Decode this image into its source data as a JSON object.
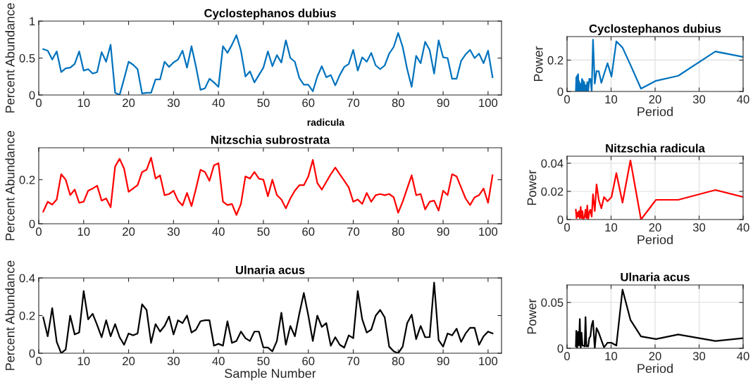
{
  "chart_data": [
    {
      "type": "line",
      "title": "Cyclostephanos dubius",
      "ylabel": "Percent Abundance",
      "xlim": [
        0,
        103
      ],
      "xticks": [
        0,
        10,
        20,
        30,
        40,
        50,
        60,
        70,
        80,
        90,
        100
      ],
      "ylim": [
        0,
        1
      ],
      "yticks": [
        0,
        0.5,
        1
      ],
      "grid": false,
      "annotations": [
        "radicula"
      ],
      "x": [
        1,
        2,
        3,
        4,
        5,
        6,
        7,
        8,
        9,
        10,
        11,
        12,
        13,
        14,
        15,
        16,
        17,
        18,
        19,
        20,
        21,
        22,
        23,
        24,
        25,
        26,
        27,
        28,
        29,
        30,
        31,
        32,
        33,
        34,
        35,
        36,
        37,
        38,
        39,
        40,
        41,
        42,
        43,
        44,
        45,
        46,
        47,
        48,
        49,
        50,
        51,
        52,
        53,
        54,
        55,
        56,
        57,
        58,
        59,
        60,
        61,
        62,
        63,
        64,
        65,
        66,
        67,
        68,
        69,
        70,
        71,
        72,
        73,
        74,
        75,
        76,
        77,
        78,
        79,
        80,
        81,
        82,
        83,
        84,
        85,
        86,
        87,
        88,
        89,
        90,
        91,
        92,
        93,
        94,
        95,
        96,
        97,
        98,
        99,
        100,
        101
      ],
      "series": [
        {
          "color": "#0072bd",
          "values": [
            0.62,
            0.6,
            0.48,
            0.59,
            0.31,
            0.36,
            0.37,
            0.42,
            0.59,
            0.33,
            0.35,
            0.29,
            0.31,
            0.58,
            0.45,
            0.68,
            0.03,
            0.0,
            0.22,
            0.45,
            0.41,
            0.35,
            0.02,
            0.03,
            0.03,
            0.21,
            0.21,
            0.45,
            0.38,
            0.44,
            0.48,
            0.6,
            0.37,
            0.66,
            0.38,
            0.07,
            0.09,
            0.22,
            0.17,
            0.11,
            0.66,
            0.57,
            0.68,
            0.81,
            0.6,
            0.25,
            0.32,
            0.17,
            0.27,
            0.37,
            0.59,
            0.39,
            0.54,
            0.44,
            0.74,
            0.5,
            0.45,
            0.23,
            0.14,
            0.14,
            0.05,
            0.25,
            0.39,
            0.24,
            0.27,
            0.13,
            0.27,
            0.38,
            0.42,
            0.61,
            0.33,
            0.51,
            0.45,
            0.57,
            0.4,
            0.35,
            0.4,
            0.56,
            0.65,
            0.84,
            0.65,
            0.35,
            0.11,
            0.53,
            0.43,
            0.72,
            0.61,
            0.29,
            0.74,
            0.51,
            0.5,
            0.22,
            0.22,
            0.46,
            0.55,
            0.61,
            0.5,
            0.56,
            0.43,
            0.6,
            0.24
          ]
        }
      ]
    },
    {
      "type": "line",
      "title": "Cyclostephanos dubius",
      "xlabel": "Period",
      "ylabel": "Power",
      "xlim": [
        0,
        40
      ],
      "xticks": [
        0,
        10,
        20,
        30,
        40
      ],
      "ylim": [
        0,
        0.35
      ],
      "yticks": [
        0,
        0.2
      ],
      "grid": true,
      "x": [
        40,
        33.7,
        25.25,
        20.2,
        16.8,
        14.4,
        12.6,
        11.2,
        10.1,
        9.2,
        8.4,
        7.8,
        7.2,
        6.7,
        6.3,
        5.9,
        5.6,
        5.3,
        5.05,
        4.8,
        4.6,
        4.4,
        4.2,
        4.0,
        3.9,
        3.7,
        3.6,
        3.5,
        3.4,
        3.25,
        3.15,
        3.06,
        2.97,
        2.89,
        2.8,
        2.73,
        2.66,
        2.59,
        2.52,
        2.46,
        2.4,
        2.35,
        2.3,
        2.2,
        2.1,
        2.0
      ],
      "series": [
        {
          "color": "#0072bd",
          "values": [
            0.22,
            0.255,
            0.1,
            0.068,
            0.018,
            0.17,
            0.28,
            0.32,
            0.095,
            0.18,
            0.11,
            0.055,
            0.13,
            0.13,
            0.05,
            0.33,
            0.0,
            0.08,
            0.08,
            0.0,
            0.06,
            0.0,
            0.04,
            0.0,
            0.06,
            0.0,
            0.07,
            0.01,
            0.08,
            0.0,
            0.04,
            0.01,
            0.05,
            0.0,
            0.06,
            0.0,
            0.07,
            0.02,
            0.11,
            0.0,
            0.09,
            0.02,
            0.1,
            0.0,
            0.09,
            0.0
          ]
        }
      ]
    },
    {
      "type": "line",
      "title": "Nitzschia subrostrata",
      "ylabel": "Percent Abundance",
      "xlim": [
        0,
        103
      ],
      "xticks": [
        0,
        10,
        20,
        30,
        40,
        50,
        60,
        70,
        80,
        90,
        100
      ],
      "ylim": [
        0,
        0.345
      ],
      "yticks": [
        0,
        0.2
      ],
      "grid": false,
      "x": [
        1,
        2,
        3,
        4,
        5,
        6,
        7,
        8,
        9,
        10,
        11,
        12,
        13,
        14,
        15,
        16,
        17,
        18,
        19,
        20,
        21,
        22,
        23,
        24,
        25,
        26,
        27,
        28,
        29,
        30,
        31,
        32,
        33,
        34,
        35,
        36,
        37,
        38,
        39,
        40,
        41,
        42,
        43,
        44,
        45,
        46,
        47,
        48,
        49,
        50,
        51,
        52,
        53,
        54,
        55,
        56,
        57,
        58,
        59,
        60,
        61,
        62,
        63,
        64,
        65,
        66,
        67,
        68,
        69,
        70,
        71,
        72,
        73,
        74,
        75,
        76,
        77,
        78,
        79,
        80,
        81,
        82,
        83,
        84,
        85,
        86,
        87,
        88,
        89,
        90,
        91,
        92,
        93,
        94,
        95,
        96,
        97,
        98,
        99,
        100,
        101
      ],
      "series": [
        {
          "color": "#ff0000",
          "values": [
            0.055,
            0.1,
            0.087,
            0.11,
            0.225,
            0.2,
            0.13,
            0.155,
            0.095,
            0.1,
            0.15,
            0.16,
            0.173,
            0.105,
            0.115,
            0.075,
            0.26,
            0.295,
            0.25,
            0.145,
            0.16,
            0.175,
            0.235,
            0.245,
            0.3,
            0.205,
            0.22,
            0.13,
            0.135,
            0.15,
            0.105,
            0.083,
            0.14,
            0.08,
            0.16,
            0.245,
            0.235,
            0.195,
            0.265,
            0.275,
            0.1,
            0.085,
            0.09,
            0.04,
            0.09,
            0.215,
            0.205,
            0.235,
            0.205,
            0.2,
            0.125,
            0.2,
            0.13,
            0.11,
            0.07,
            0.115,
            0.15,
            0.175,
            0.175,
            0.215,
            0.29,
            0.185,
            0.155,
            0.19,
            0.225,
            0.255,
            0.225,
            0.195,
            0.165,
            0.1,
            0.11,
            0.09,
            0.14,
            0.1,
            0.13,
            0.135,
            0.13,
            0.135,
            0.12,
            0.05,
            0.1,
            0.16,
            0.22,
            0.13,
            0.135,
            0.065,
            0.1,
            0.105,
            0.06,
            0.15,
            0.13,
            0.225,
            0.215,
            0.165,
            0.115,
            0.085,
            0.12,
            0.13,
            0.16,
            0.095,
            0.22
          ]
        }
      ]
    },
    {
      "type": "line",
      "title": "Nitzschia radicula",
      "xlabel": "Period",
      "ylabel": "Power",
      "xlim": [
        0,
        40
      ],
      "xticks": [
        0,
        10,
        20,
        30,
        40
      ],
      "ylim": [
        0,
        0.045
      ],
      "yticks": [
        0,
        0.02,
        0.04
      ],
      "grid": true,
      "x": [
        40,
        33.7,
        25.25,
        20.2,
        16.8,
        14.4,
        12.6,
        11.2,
        10.1,
        9.2,
        8.4,
        7.8,
        7.2,
        6.7,
        6.3,
        5.9,
        5.6,
        5.3,
        5.05,
        4.8,
        4.6,
        4.4,
        4.2,
        4.0,
        3.7,
        3.5,
        3.3,
        3.1,
        2.9,
        2.7,
        2.5,
        2.3,
        2.15,
        2.0
      ],
      "series": [
        {
          "color": "#ff0000",
          "values": [
            0.016,
            0.021,
            0.014,
            0.014,
            0.0,
            0.042,
            0.012,
            0.033,
            0.016,
            0.013,
            0.016,
            0.008,
            0.014,
            0.025,
            0.006,
            0.018,
            0.002,
            0.007,
            0.005,
            0.0,
            0.01,
            0.001,
            0.007,
            0.002,
            0.0,
            0.006,
            0.001,
            0.009,
            0.001,
            0.006,
            0.002,
            0.005,
            0.001,
            0.007
          ]
        }
      ]
    },
    {
      "type": "line",
      "title": "Ulnaria acus",
      "xlabel": "Sample Number",
      "ylabel": "Percent Abundance",
      "xlim": [
        0,
        103
      ],
      "xticks": [
        0,
        10,
        20,
        30,
        40,
        50,
        60,
        70,
        80,
        90,
        100
      ],
      "ylim": [
        0,
        0.4
      ],
      "yticks": [
        0,
        0.2,
        0.4
      ],
      "grid": false,
      "x": [
        1,
        2,
        3,
        4,
        5,
        6,
        7,
        8,
        9,
        10,
        11,
        12,
        13,
        14,
        15,
        16,
        17,
        18,
        19,
        20,
        21,
        22,
        23,
        24,
        25,
        26,
        27,
        28,
        29,
        30,
        31,
        32,
        33,
        34,
        35,
        36,
        37,
        38,
        39,
        40,
        41,
        42,
        43,
        44,
        45,
        46,
        47,
        48,
        49,
        50,
        51,
        52,
        53,
        54,
        55,
        56,
        57,
        58,
        59,
        60,
        61,
        62,
        63,
        64,
        65,
        66,
        67,
        68,
        69,
        70,
        71,
        72,
        73,
        74,
        75,
        76,
        77,
        78,
        79,
        80,
        81,
        82,
        83,
        84,
        85,
        86,
        87,
        88,
        89,
        90,
        91,
        92,
        93,
        94,
        95,
        96,
        97,
        98,
        99,
        100,
        101
      ],
      "series": [
        {
          "color": "#000000",
          "values": [
            0.19,
            0.09,
            0.24,
            0.06,
            0.0,
            0.02,
            0.2,
            0.1,
            0.11,
            0.33,
            0.18,
            0.21,
            0.15,
            0.085,
            0.175,
            0.09,
            0.155,
            0.085,
            0.045,
            0.105,
            0.095,
            0.105,
            0.26,
            0.23,
            0.055,
            0.155,
            0.115,
            0.145,
            0.195,
            0.1,
            0.175,
            0.16,
            0.2,
            0.11,
            0.125,
            0.17,
            0.175,
            0.175,
            0.04,
            0.05,
            0.04,
            0.17,
            0.055,
            0.065,
            0.115,
            0.08,
            0.065,
            0.115,
            0.115,
            0.03,
            0.03,
            0.01,
            0.065,
            0.215,
            0.045,
            0.145,
            0.09,
            0.21,
            0.32,
            0.2,
            0.065,
            0.2,
            0.14,
            0.16,
            0.04,
            0.085,
            0.045,
            0.03,
            0.095,
            0.08,
            0.33,
            0.18,
            0.11,
            0.125,
            0.2,
            0.23,
            0.19,
            0.035,
            0.01,
            0.0,
            0.035,
            0.16,
            0.205,
            0.075,
            0.145,
            0.085,
            0.085,
            0.375,
            0.07,
            0.035,
            0.105,
            0.095,
            0.13,
            0.06,
            0.105,
            0.135,
            0.135,
            0.045,
            0.09,
            0.115,
            0.105
          ]
        }
      ]
    },
    {
      "type": "line",
      "title": "Ulnaria acus",
      "xlabel": "Period",
      "ylabel": "Power",
      "xlim": [
        0,
        40
      ],
      "xticks": [
        0,
        10,
        20,
        30,
        40
      ],
      "ylim": [
        0,
        0.069
      ],
      "yticks": [
        0,
        0.05
      ],
      "grid": true,
      "x": [
        40,
        33.7,
        25.25,
        20.2,
        16.8,
        14.4,
        12.6,
        11.2,
        10.1,
        9.2,
        8.4,
        7.8,
        7.2,
        6.7,
        6.3,
        5.9,
        5.6,
        5.3,
        5.05,
        4.8,
        4.6,
        4.4,
        4.2,
        4.0,
        3.7,
        3.5,
        3.3,
        3.1,
        2.9,
        2.7,
        2.5,
        2.3,
        2.1,
        2.0
      ],
      "series": [
        {
          "color": "#000000",
          "values": [
            0.011,
            0.008,
            0.015,
            0.01,
            0.013,
            0.031,
            0.064,
            0.003,
            0.006,
            0.006,
            0.001,
            0.009,
            0.017,
            0.022,
            0.0,
            0.03,
            0.025,
            0.013,
            0.011,
            0.002,
            0.003,
            0.002,
            0.034,
            0.002,
            0.003,
            0.003,
            0.017,
            0.0,
            0.032,
            0.003,
            0.018,
            0.0,
            0.019,
            0.002
          ]
        }
      ]
    }
  ]
}
